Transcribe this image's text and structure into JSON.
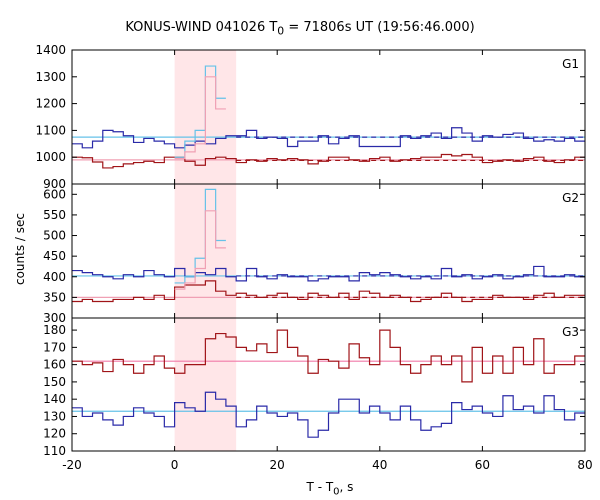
{
  "chart": {
    "title_pre": "KONUS-WIND 041026 T",
    "title_sub": "0",
    "title_post": " = 71806s UT (19:56:46.000)",
    "ylabel": "counts / sec",
    "xlabel_pre": "T - T",
    "xlabel_sub": "0",
    "xlabel_post": ", s"
  },
  "chart_data": {
    "type": "line",
    "x_range": [
      -20,
      80
    ],
    "x_ticks": [
      -20,
      0,
      20,
      40,
      60,
      80
    ],
    "highlight_interval": [
      0,
      12
    ],
    "bin_edges": [
      -20,
      -18,
      -16,
      -14,
      -12,
      -10,
      -8,
      -6,
      -4,
      -2,
      0,
      2,
      4,
      6,
      8,
      10,
      12,
      14,
      16,
      18,
      20,
      22,
      24,
      26,
      28,
      30,
      32,
      34,
      36,
      38,
      40,
      42,
      44,
      46,
      48,
      50,
      52,
      54,
      56,
      58,
      60,
      62,
      64,
      66,
      68,
      70,
      72,
      74,
      76,
      78,
      80
    ],
    "panels": [
      {
        "label": "G1",
        "ylim": [
          900,
          1400
        ],
        "yticks": [
          900,
          1000,
          1100,
          1200,
          1300,
          1400
        ],
        "series": [
          {
            "color": "#2a2aa8",
            "values": [
              1050,
              1035,
              1060,
              1100,
              1095,
              1080,
              1055,
              1070,
              1060,
              1050,
              1035,
              1045,
              1060,
              1050,
              1070,
              1080,
              1080,
              1100,
              1070,
              1075,
              1070,
              1040,
              1060,
              1060,
              1080,
              1050,
              1070,
              1080,
              1040,
              1040,
              1040,
              1040,
              1080,
              1070,
              1080,
              1090,
              1070,
              1110,
              1090,
              1060,
              1080,
              1075,
              1085,
              1090,
              1070,
              1060,
              1065,
              1060,
              1070,
              1060
            ]
          },
          {
            "color": "#a01418",
            "values": [
              1000,
              998,
              982,
              960,
              965,
              975,
              980,
              985,
              980,
              1000,
              1000,
              985,
              970,
              995,
              1000,
              995,
              980,
              990,
              985,
              995,
              990,
              995,
              990,
              975,
              985,
              1000,
              1000,
              990,
              985,
              995,
              1000,
              985,
              990,
              995,
              1000,
              1000,
              1010,
              1005,
              1010,
              1000,
              980,
              985,
              990,
              985,
              995,
              1000,
              985,
              980,
              990,
              1000
            ]
          },
          {
            "color": "#66c2e8",
            "values": [
              null,
              null,
              null,
              null,
              null,
              null,
              null,
              null,
              null,
              null,
              1000,
              1060,
              1100,
              1340,
              1220,
              null,
              null,
              null,
              null,
              null,
              null,
              null,
              null,
              null,
              null,
              null,
              null,
              null,
              null,
              null,
              null,
              null,
              null,
              null,
              null,
              null,
              null,
              null,
              null,
              null,
              null,
              null,
              null,
              null,
              null,
              null,
              null,
              null,
              null,
              null
            ]
          },
          {
            "color": "#f0a0b4",
            "values": [
              null,
              null,
              null,
              null,
              null,
              null,
              null,
              null,
              null,
              null,
              995,
              1020,
              1050,
              1300,
              1180,
              null,
              null,
              null,
              null,
              null,
              null,
              null,
              null,
              null,
              null,
              null,
              null,
              null,
              null,
              null,
              null,
              null,
              null,
              null,
              null,
              null,
              null,
              null,
              null,
              null,
              null,
              null,
              null,
              null,
              null,
              null,
              null,
              null,
              null,
              null
            ]
          }
        ],
        "background_levels": [
          {
            "color": "#66c2e8",
            "level": 1075,
            "style": "solid"
          },
          {
            "color": "#f0a0b4",
            "level": 990,
            "style": "solid"
          },
          {
            "color": "#2a2aa8",
            "level": 1075,
            "style": "dashed",
            "from": 12
          },
          {
            "color": "#a01418",
            "level": 988,
            "style": "dashed",
            "from": 12
          }
        ]
      },
      {
        "label": "G2",
        "ylim": [
          300,
          625
        ],
        "yticks": [
          300,
          350,
          400,
          450,
          500,
          550,
          600
        ],
        "series": [
          {
            "color": "#2a2aa8",
            "values": [
              415,
              410,
              405,
              400,
              395,
              405,
              400,
              415,
              405,
              400,
              420,
              400,
              410,
              405,
              420,
              400,
              390,
              420,
              400,
              395,
              405,
              400,
              400,
              390,
              395,
              400,
              400,
              390,
              410,
              405,
              410,
              405,
              400,
              395,
              400,
              395,
              420,
              400,
              405,
              395,
              400,
              405,
              395,
              400,
              405,
              425,
              400,
              400,
              405,
              400
            ]
          },
          {
            "color": "#a01418",
            "values": [
              340,
              345,
              340,
              340,
              345,
              345,
              350,
              345,
              355,
              345,
              375,
              380,
              380,
              390,
              365,
              355,
              360,
              355,
              350,
              355,
              360,
              350,
              345,
              360,
              355,
              350,
              360,
              345,
              365,
              360,
              350,
              355,
              350,
              340,
              345,
              350,
              360,
              350,
              340,
              345,
              345,
              355,
              350,
              350,
              345,
              355,
              360,
              350,
              355,
              355
            ]
          },
          {
            "color": "#66c2e8",
            "values": [
              null,
              null,
              null,
              null,
              null,
              null,
              null,
              null,
              null,
              null,
              385,
              400,
              445,
              612,
              488,
              null,
              null,
              null,
              null,
              null,
              null,
              null,
              null,
              null,
              null,
              null,
              null,
              null,
              null,
              null,
              null,
              null,
              null,
              null,
              null,
              null,
              null,
              null,
              null,
              null,
              null,
              null,
              null,
              null,
              null,
              null,
              null,
              null,
              null,
              null
            ]
          },
          {
            "color": "#f0a0b4",
            "values": [
              null,
              null,
              null,
              null,
              null,
              null,
              null,
              null,
              null,
              null,
              370,
              385,
              420,
              560,
              470,
              null,
              null,
              null,
              null,
              null,
              null,
              null,
              null,
              null,
              null,
              null,
              null,
              null,
              null,
              null,
              null,
              null,
              null,
              null,
              null,
              null,
              null,
              null,
              null,
              null,
              null,
              null,
              null,
              null,
              null,
              null,
              null,
              null,
              null,
              null
            ]
          }
        ],
        "background_levels": [
          {
            "color": "#66c2e8",
            "level": 402,
            "style": "solid"
          },
          {
            "color": "#f0a0b4",
            "level": 350,
            "style": "solid"
          },
          {
            "color": "#2a2aa8",
            "level": 402,
            "style": "dashed",
            "from": 12
          },
          {
            "color": "#a01418",
            "level": 350,
            "style": "dashed",
            "from": 12
          }
        ]
      },
      {
        "label": "G3",
        "ylim": [
          110,
          187
        ],
        "yticks": [
          110,
          120,
          130,
          140,
          150,
          160,
          170,
          180
        ],
        "series": [
          {
            "color": "#a01418",
            "values": [
              162,
              160,
              161,
              156,
              163,
              160,
              155,
              160,
              165,
              158,
              155,
              160,
              160,
              175,
              178,
              176,
              170,
              168,
              172,
              167,
              180,
              170,
              165,
              155,
              163,
              162,
              158,
              172,
              164,
              160,
              180,
              170,
              160,
              155,
              160,
              165,
              160,
              165,
              150,
              170,
              155,
              165,
              155,
              170,
              160,
              175,
              155,
              160,
              160,
              165
            ]
          },
          {
            "color": "#2a2aa8",
            "values": [
              135,
              130,
              132,
              128,
              125,
              130,
              135,
              132,
              130,
              124,
              138,
              135,
              133,
              144,
              140,
              136,
              124,
              128,
              136,
              132,
              130,
              132,
              128,
              118,
              122,
              132,
              140,
              140,
              132,
              136,
              132,
              128,
              136,
              128,
              122,
              124,
              126,
              138,
              134,
              136,
              132,
              130,
              142,
              134,
              136,
              132,
              142,
              134,
              128,
              132
            ]
          }
        ],
        "background_levels": [
          {
            "color": "#f07aa8",
            "level": 162,
            "style": "solid"
          },
          {
            "color": "#66c2e8",
            "level": 133,
            "style": "solid"
          }
        ]
      }
    ]
  }
}
